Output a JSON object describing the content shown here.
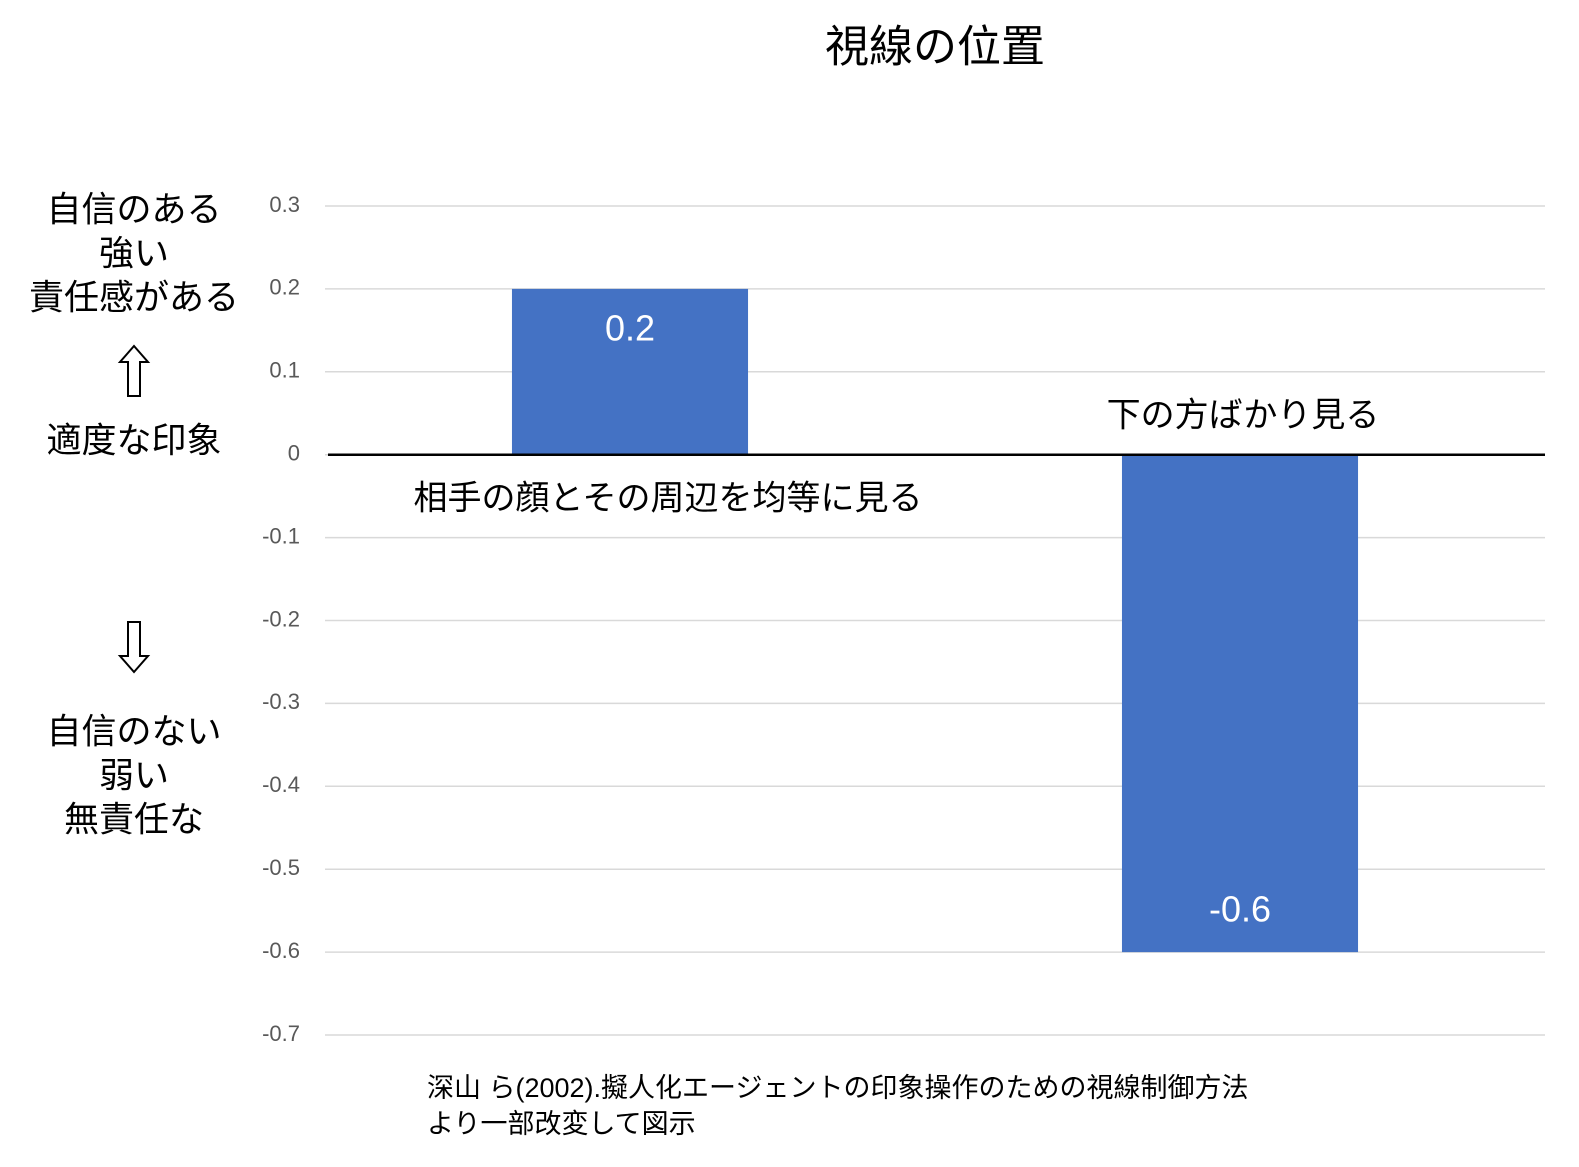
{
  "chart_data": {
    "type": "bar",
    "title": "視線の位置",
    "categories": [
      "相手の顔とその周辺を均等に見る",
      "下の方ばかり見る"
    ],
    "values": [
      0.2,
      -0.6
    ],
    "color": "#4472c4",
    "ylim": [
      -0.7,
      0.3
    ],
    "yticks": [
      0.3,
      0.2,
      0.1,
      0,
      -0.1,
      -0.2,
      -0.3,
      -0.4,
      -0.5,
      -0.6,
      -0.7
    ],
    "grid": true,
    "y_axis_annotations": {
      "top": [
        "自信のある",
        "強い",
        "責任感がある"
      ],
      "middle": "適度な印象",
      "bottom": [
        "自信のない",
        "弱い",
        "無責任な"
      ]
    },
    "source": [
      "深山 ら(2002).擬人化エージェントの印象操作のための視線制御方法",
      "より一部改変して図示"
    ]
  }
}
